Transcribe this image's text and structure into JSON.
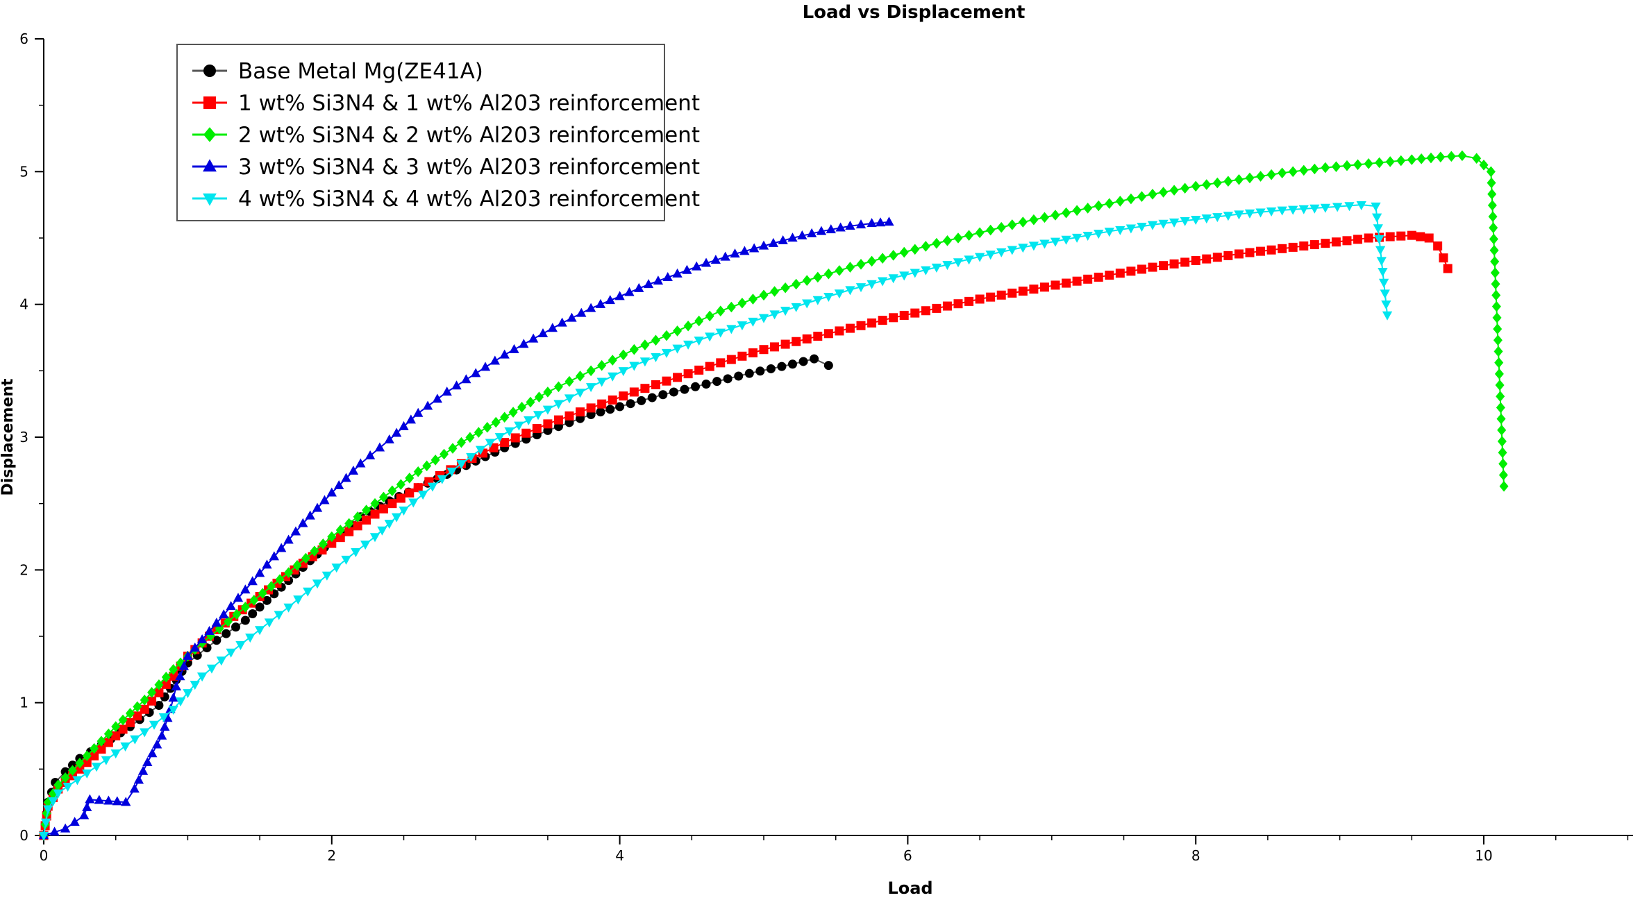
{
  "chart_data": {
    "type": "line",
    "title": "Load vs Displacement",
    "xlabel": "Load",
    "ylabel": "Displacement",
    "xlim": [
      0,
      11
    ],
    "ylim": [
      0,
      6
    ],
    "x_ticks": [
      0,
      2,
      4,
      6,
      8,
      10
    ],
    "y_ticks": [
      0,
      1,
      2,
      3,
      4,
      5,
      6
    ],
    "x_tick_labels": [
      "0",
      "2",
      "4",
      "6",
      "8",
      "10"
    ],
    "y_tick_labels": [
      "0",
      "1",
      "2",
      "3",
      "4",
      "5",
      "6"
    ],
    "x_minor_step": 0.5,
    "y_minor_step": 0.5,
    "grid": false,
    "legend_position": "top-left",
    "series": [
      {
        "name": "Base Metal Mg(ZE41A)",
        "color": "#000000",
        "line_color": "#555555",
        "marker": "circle",
        "points": [
          [
            0,
            0
          ],
          [
            0.03,
            0.25
          ],
          [
            0.08,
            0.4
          ],
          [
            0.15,
            0.48
          ],
          [
            0.25,
            0.58
          ],
          [
            0.4,
            0.68
          ],
          [
            0.6,
            0.82
          ],
          [
            0.8,
            0.98
          ],
          [
            1.0,
            1.3
          ],
          [
            1.2,
            1.47
          ],
          [
            1.4,
            1.62
          ],
          [
            1.6,
            1.82
          ],
          [
            1.8,
            2.02
          ],
          [
            2.0,
            2.22
          ],
          [
            2.2,
            2.4
          ],
          [
            2.4,
            2.52
          ],
          [
            2.6,
            2.62
          ],
          [
            2.8,
            2.72
          ],
          [
            3.0,
            2.82
          ],
          [
            3.2,
            2.92
          ],
          [
            3.5,
            3.05
          ],
          [
            3.8,
            3.17
          ],
          [
            4.0,
            3.23
          ],
          [
            4.3,
            3.32
          ],
          [
            4.6,
            3.4
          ],
          [
            4.9,
            3.48
          ],
          [
            5.2,
            3.55
          ],
          [
            5.35,
            3.59
          ],
          [
            5.45,
            3.54
          ]
        ]
      },
      {
        "name": "1 wt% Si3N4 & 1 wt% Al203 reinforcement",
        "color": "#ff0000",
        "line_color": "#ff0000",
        "marker": "square",
        "points": [
          [
            0,
            0
          ],
          [
            0.03,
            0.22
          ],
          [
            0.1,
            0.35
          ],
          [
            0.3,
            0.55
          ],
          [
            0.5,
            0.75
          ],
          [
            0.7,
            0.95
          ],
          [
            0.9,
            1.2
          ],
          [
            1.0,
            1.35
          ],
          [
            1.2,
            1.55
          ],
          [
            1.5,
            1.8
          ],
          [
            1.8,
            2.05
          ],
          [
            2.0,
            2.2
          ],
          [
            2.3,
            2.42
          ],
          [
            2.6,
            2.62
          ],
          [
            2.9,
            2.8
          ],
          [
            3.2,
            2.96
          ],
          [
            3.5,
            3.1
          ],
          [
            3.8,
            3.22
          ],
          [
            4.1,
            3.34
          ],
          [
            4.4,
            3.45
          ],
          [
            4.7,
            3.56
          ],
          [
            5.0,
            3.66
          ],
          [
            5.3,
            3.74
          ],
          [
            5.6,
            3.82
          ],
          [
            5.9,
            3.9
          ],
          [
            6.2,
            3.97
          ],
          [
            6.5,
            4.04
          ],
          [
            6.8,
            4.1
          ],
          [
            7.1,
            4.16
          ],
          [
            7.4,
            4.22
          ],
          [
            7.7,
            4.28
          ],
          [
            8.0,
            4.33
          ],
          [
            8.3,
            4.38
          ],
          [
            8.6,
            4.42
          ],
          [
            8.9,
            4.46
          ],
          [
            9.2,
            4.5
          ],
          [
            9.5,
            4.52
          ],
          [
            9.62,
            4.5
          ],
          [
            9.68,
            4.44
          ],
          [
            9.72,
            4.35
          ],
          [
            9.75,
            4.27
          ]
        ]
      },
      {
        "name": "2 wt% Si3N4 & 2 wt% Al203 reinforcement",
        "color": "#00ee00",
        "line_color": "#00ee00",
        "marker": "diamond",
        "points": [
          [
            0,
            0
          ],
          [
            0.03,
            0.25
          ],
          [
            0.1,
            0.38
          ],
          [
            0.3,
            0.6
          ],
          [
            0.5,
            0.82
          ],
          [
            0.7,
            1.02
          ],
          [
            0.9,
            1.25
          ],
          [
            1.1,
            1.45
          ],
          [
            1.4,
            1.72
          ],
          [
            1.7,
            1.98
          ],
          [
            2.0,
            2.25
          ],
          [
            2.3,
            2.5
          ],
          [
            2.6,
            2.74
          ],
          [
            2.9,
            2.96
          ],
          [
            3.2,
            3.15
          ],
          [
            3.5,
            3.34
          ],
          [
            3.8,
            3.5
          ],
          [
            4.1,
            3.66
          ],
          [
            4.4,
            3.8
          ],
          [
            4.7,
            3.95
          ],
          [
            5.0,
            4.07
          ],
          [
            5.3,
            4.18
          ],
          [
            5.6,
            4.28
          ],
          [
            5.9,
            4.37
          ],
          [
            6.2,
            4.46
          ],
          [
            6.5,
            4.54
          ],
          [
            6.8,
            4.62
          ],
          [
            7.1,
            4.69
          ],
          [
            7.4,
            4.76
          ],
          [
            7.7,
            4.83
          ],
          [
            8.0,
            4.89
          ],
          [
            8.3,
            4.94
          ],
          [
            8.6,
            4.99
          ],
          [
            8.9,
            5.03
          ],
          [
            9.2,
            5.06
          ],
          [
            9.5,
            5.09
          ],
          [
            9.7,
            5.11
          ],
          [
            9.85,
            5.12
          ],
          [
            9.95,
            5.1
          ],
          [
            10.05,
            5.0
          ],
          [
            10.14,
            2.63
          ]
        ]
      },
      {
        "name": "3 wt% Si3N4 & 3 wt% Al203 reinforcement",
        "color": "#0000dd",
        "line_color": "#0000dd",
        "marker": "triangle-up",
        "points": [
          [
            0,
            0
          ],
          [
            0.15,
            0.05
          ],
          [
            0.28,
            0.15
          ],
          [
            0.32,
            0.27
          ],
          [
            0.45,
            0.26
          ],
          [
            0.57,
            0.25
          ],
          [
            0.63,
            0.35
          ],
          [
            0.72,
            0.55
          ],
          [
            0.82,
            0.75
          ],
          [
            0.88,
            0.95
          ],
          [
            0.92,
            1.12
          ],
          [
            1.0,
            1.35
          ],
          [
            1.2,
            1.6
          ],
          [
            1.4,
            1.85
          ],
          [
            1.6,
            2.1
          ],
          [
            1.8,
            2.35
          ],
          [
            2.0,
            2.58
          ],
          [
            2.2,
            2.8
          ],
          [
            2.4,
            2.98
          ],
          [
            2.6,
            3.18
          ],
          [
            2.8,
            3.34
          ],
          [
            3.0,
            3.48
          ],
          [
            3.2,
            3.62
          ],
          [
            3.4,
            3.74
          ],
          [
            3.6,
            3.86
          ],
          [
            3.8,
            3.97
          ],
          [
            4.0,
            4.06
          ],
          [
            4.2,
            4.15
          ],
          [
            4.4,
            4.23
          ],
          [
            4.6,
            4.31
          ],
          [
            4.8,
            4.38
          ],
          [
            5.0,
            4.44
          ],
          [
            5.2,
            4.5
          ],
          [
            5.4,
            4.55
          ],
          [
            5.6,
            4.59
          ],
          [
            5.75,
            4.61
          ],
          [
            5.87,
            4.62
          ]
        ]
      },
      {
        "name": "4 wt% Si3N4 & 4 wt% Al203 reinforcement",
        "color": "#00e5ee",
        "line_color": "#00e5ee",
        "marker": "triangle-down",
        "points": [
          [
            0,
            0
          ],
          [
            0.03,
            0.2
          ],
          [
            0.1,
            0.32
          ],
          [
            0.3,
            0.47
          ],
          [
            0.5,
            0.62
          ],
          [
            0.7,
            0.78
          ],
          [
            0.9,
            0.95
          ],
          [
            1.1,
            1.2
          ],
          [
            1.3,
            1.38
          ],
          [
            1.5,
            1.55
          ],
          [
            1.7,
            1.72
          ],
          [
            1.9,
            1.9
          ],
          [
            2.1,
            2.08
          ],
          [
            2.3,
            2.25
          ],
          [
            2.5,
            2.45
          ],
          [
            2.7,
            2.63
          ],
          [
            2.9,
            2.8
          ],
          [
            3.1,
            2.96
          ],
          [
            3.3,
            3.09
          ],
          [
            3.5,
            3.21
          ],
          [
            3.8,
            3.38
          ],
          [
            4.1,
            3.54
          ],
          [
            4.4,
            3.67
          ],
          [
            4.7,
            3.79
          ],
          [
            5.0,
            3.9
          ],
          [
            5.3,
            4.01
          ],
          [
            5.6,
            4.11
          ],
          [
            5.9,
            4.2
          ],
          [
            6.2,
            4.28
          ],
          [
            6.5,
            4.36
          ],
          [
            6.8,
            4.43
          ],
          [
            7.1,
            4.49
          ],
          [
            7.4,
            4.55
          ],
          [
            7.7,
            4.6
          ],
          [
            8.0,
            4.64
          ],
          [
            8.3,
            4.68
          ],
          [
            8.6,
            4.71
          ],
          [
            8.9,
            4.73
          ],
          [
            9.15,
            4.75
          ],
          [
            9.25,
            4.74
          ],
          [
            9.33,
            3.92
          ]
        ]
      }
    ]
  }
}
